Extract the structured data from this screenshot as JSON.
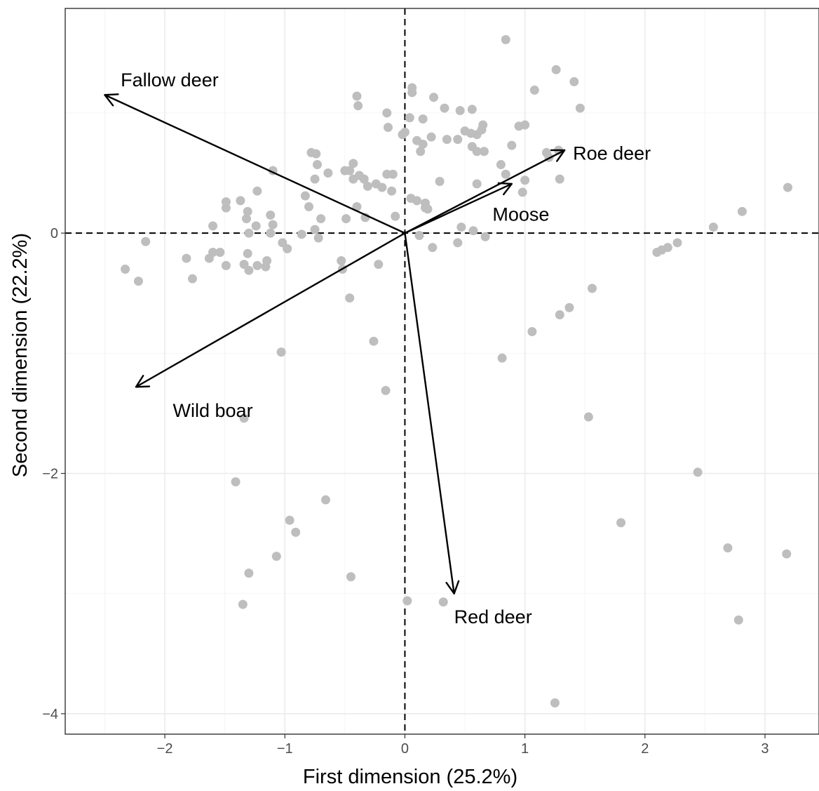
{
  "chart_data": {
    "type": "scatter",
    "title": "",
    "xlabel": "First dimension (25.2%)",
    "ylabel": "Second dimension (22.2%)",
    "xlim": [
      -2.83,
      3.45
    ],
    "ylim": [
      -4.17,
      1.87
    ],
    "x_ticks": [
      -2,
      -1,
      0,
      1,
      2,
      3
    ],
    "x_tick_labels": [
      "−2",
      "−1",
      "0",
      "1",
      "2",
      "3"
    ],
    "y_ticks": [
      -4,
      -2,
      0
    ],
    "y_tick_labels": [
      "−4",
      "−2",
      "0"
    ],
    "grid": true,
    "reference_lines": {
      "x": 0,
      "y": 0,
      "style": "dashed"
    },
    "point_color": "#bebebe",
    "points": [
      [
        0.84,
        1.61
      ],
      [
        1.26,
        1.36
      ],
      [
        1.41,
        1.26
      ],
      [
        1.08,
        1.19
      ],
      [
        1.46,
        1.04
      ],
      [
        0.06,
        1.21
      ],
      [
        0.06,
        1.17
      ],
      [
        0.24,
        1.13
      ],
      [
        -0.4,
        1.14
      ],
      [
        -0.39,
        1.06
      ],
      [
        0.33,
        1.04
      ],
      [
        0.46,
        1.02
      ],
      [
        0.56,
        1.03
      ],
      [
        -0.15,
        1.0
      ],
      [
        0.04,
        0.96
      ],
      [
        0.15,
        0.95
      ],
      [
        -0.14,
        0.88
      ],
      [
        0.0,
        0.84
      ],
      [
        -0.02,
        0.82
      ],
      [
        0.1,
        0.77
      ],
      [
        0.22,
        0.8
      ],
      [
        0.35,
        0.78
      ],
      [
        0.44,
        0.78
      ],
      [
        0.5,
        0.85
      ],
      [
        0.55,
        0.83
      ],
      [
        0.6,
        0.82
      ],
      [
        0.64,
        0.86
      ],
      [
        0.65,
        0.9
      ],
      [
        0.95,
        0.89
      ],
      [
        1.0,
        0.9
      ],
      [
        0.15,
        0.74
      ],
      [
        0.13,
        0.68
      ],
      [
        0.56,
        0.72
      ],
      [
        0.6,
        0.68
      ],
      [
        0.66,
        0.68
      ],
      [
        0.89,
        0.73
      ],
      [
        1.18,
        0.67
      ],
      [
        1.2,
        0.63
      ],
      [
        1.28,
        0.69
      ],
      [
        0.8,
        0.57
      ],
      [
        0.84,
        0.49
      ],
      [
        1.0,
        0.44
      ],
      [
        1.29,
        0.45
      ],
      [
        0.98,
        0.34
      ],
      [
        0.6,
        0.41
      ],
      [
        0.29,
        0.43
      ],
      [
        -0.74,
        0.66
      ],
      [
        -0.78,
        0.67
      ],
      [
        -0.73,
        0.57
      ],
      [
        -0.64,
        0.5
      ],
      [
        -0.75,
        0.45
      ],
      [
        -0.5,
        0.52
      ],
      [
        -0.46,
        0.52
      ],
      [
        -0.43,
        0.58
      ],
      [
        -0.43,
        0.45
      ],
      [
        -0.38,
        0.48
      ],
      [
        -0.34,
        0.45
      ],
      [
        -0.31,
        0.39
      ],
      [
        -0.24,
        0.41
      ],
      [
        -0.19,
        0.38
      ],
      [
        -0.15,
        0.49
      ],
      [
        -0.1,
        0.49
      ],
      [
        -0.11,
        0.35
      ],
      [
        0.05,
        0.29
      ],
      [
        0.1,
        0.27
      ],
      [
        0.17,
        0.25
      ],
      [
        0.17,
        0.21
      ],
      [
        0.19,
        0.2
      ],
      [
        -0.4,
        0.22
      ],
      [
        -0.33,
        0.13
      ],
      [
        -0.49,
        0.12
      ],
      [
        -0.08,
        0.14
      ],
      [
        -1.1,
        0.52
      ],
      [
        -1.23,
        0.35
      ],
      [
        -0.83,
        0.31
      ],
      [
        -0.8,
        0.22
      ],
      [
        -0.7,
        0.12
      ],
      [
        -1.37,
        0.27
      ],
      [
        -1.49,
        0.26
      ],
      [
        -1.49,
        0.21
      ],
      [
        -1.31,
        0.18
      ],
      [
        -1.12,
        0.15
      ],
      [
        -1.1,
        0.07
      ],
      [
        -1.24,
        0.06
      ],
      [
        -1.6,
        0.06
      ],
      [
        -1.32,
        0.12
      ],
      [
        -1.3,
        0.0
      ],
      [
        -1.12,
        0.0
      ],
      [
        -1.02,
        -0.08
      ],
      [
        -0.98,
        -0.13
      ],
      [
        -0.86,
        -0.01
      ],
      [
        -0.72,
        -0.04
      ],
      [
        -0.75,
        0.03
      ],
      [
        -2.16,
        -0.07
      ],
      [
        -1.6,
        -0.16
      ],
      [
        -1.54,
        -0.16
      ],
      [
        -1.63,
        -0.21
      ],
      [
        -1.82,
        -0.21
      ],
      [
        -1.77,
        -0.38
      ],
      [
        -2.33,
        -0.3
      ],
      [
        -2.22,
        -0.4
      ],
      [
        -1.49,
        -0.27
      ],
      [
        -1.34,
        -0.26
      ],
      [
        -1.3,
        -0.31
      ],
      [
        -1.31,
        -0.17
      ],
      [
        -1.23,
        -0.27
      ],
      [
        -1.15,
        -0.23
      ],
      [
        -1.16,
        -0.28
      ],
      [
        -0.53,
        -0.23
      ],
      [
        -0.52,
        -0.3
      ],
      [
        -0.22,
        -0.26
      ],
      [
        0.12,
        -0.02
      ],
      [
        0.23,
        -0.12
      ],
      [
        0.44,
        -0.08
      ],
      [
        0.47,
        0.05
      ],
      [
        0.57,
        0.02
      ],
      [
        0.67,
        -0.03
      ],
      [
        2.1,
        -0.16
      ],
      [
        2.14,
        -0.14
      ],
      [
        2.19,
        -0.12
      ],
      [
        2.27,
        -0.08
      ],
      [
        2.57,
        0.05
      ],
      [
        2.81,
        0.18
      ],
      [
        3.19,
        0.38
      ],
      [
        -0.46,
        -0.54
      ],
      [
        1.56,
        -0.46
      ],
      [
        1.37,
        -0.62
      ],
      [
        1.29,
        -0.68
      ],
      [
        1.06,
        -0.82
      ],
      [
        -1.03,
        -0.99
      ],
      [
        -0.26,
        -0.9
      ],
      [
        0.81,
        -1.04
      ],
      [
        -0.16,
        -1.31
      ],
      [
        1.53,
        -1.53
      ],
      [
        -1.34,
        -1.54
      ],
      [
        -1.41,
        -2.07
      ],
      [
        2.44,
        -1.99
      ],
      [
        -0.66,
        -2.22
      ],
      [
        -0.96,
        -2.39
      ],
      [
        -0.91,
        -2.49
      ],
      [
        1.8,
        -2.41
      ],
      [
        -1.07,
        -2.69
      ],
      [
        -1.3,
        -2.83
      ],
      [
        -0.45,
        -2.86
      ],
      [
        2.69,
        -2.62
      ],
      [
        3.18,
        -2.67
      ],
      [
        -1.35,
        -3.09
      ],
      [
        0.02,
        -3.06
      ],
      [
        0.32,
        -3.07
      ],
      [
        2.78,
        -3.22
      ],
      [
        1.25,
        -3.91
      ]
    ],
    "vectors": [
      {
        "label": "Fallow deer",
        "x": -2.5,
        "y": 1.15,
        "label_x": -1.96,
        "label_y": 1.28
      },
      {
        "label": "Roe deer",
        "x": 1.33,
        "y": 0.69,
        "label_x": 1.4,
        "label_y": 0.67
      },
      {
        "label": "Moose",
        "x": 0.89,
        "y": 0.41,
        "label_x": 0.73,
        "label_y": 0.16
      },
      {
        "label": "Wild boar",
        "x": -2.24,
        "y": -1.28,
        "label_x": -1.6,
        "label_y": -1.47
      },
      {
        "label": "Red deer",
        "x": 0.41,
        "y": -3.0,
        "label_x": 0.41,
        "label_y": -3.19
      }
    ]
  }
}
